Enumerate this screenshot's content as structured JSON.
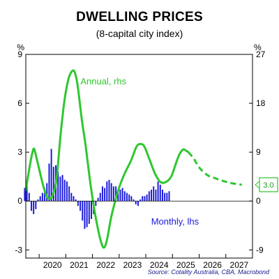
{
  "chart_data": {
    "type": "bar+line",
    "title": "DWELLING PRICES",
    "subtitle": "(8-capital city index)",
    "source": "Source: Cotality Australia, CBA, Macrobond",
    "left_axis": {
      "unit": "%",
      "ticks": [
        9,
        6,
        3,
        0,
        -3
      ],
      "ylim": [
        -3.5,
        9
      ]
    },
    "right_axis": {
      "unit": "%",
      "ticks": [
        27,
        18,
        9,
        0,
        -9
      ],
      "ylim": [
        -10.5,
        27
      ]
    },
    "x_axis": {
      "ticks": [
        "2020",
        "2021",
        "2022",
        "2023",
        "2024",
        "2025",
        "2026",
        "2027"
      ],
      "xlim": [
        2019.5,
        2028.0
      ]
    },
    "colors": {
      "monthly": "#1a1adb",
      "annual": "#2ec72e",
      "axis": "#000000",
      "source": "#1a1a8c"
    },
    "series": [
      {
        "name": "Monthly, lhs",
        "axis": "left",
        "kind": "bar",
        "start": "2019-06",
        "values": [
          0.8,
          1.0,
          0.5,
          -0.6,
          -0.8,
          -0.5,
          0.1,
          0.3,
          0.5,
          0.8,
          1.1,
          2.3,
          3.2,
          2.1,
          2.2,
          1.8,
          1.5,
          1.6,
          1.3,
          1.2,
          0.9,
          0.5,
          0.3,
          0.1,
          -0.3,
          -0.6,
          -1.2,
          -1.7,
          -1.6,
          -1.4,
          -1.1,
          -0.8,
          -0.3,
          0.2,
          0.5,
          0.9,
          0.8,
          1.2,
          1.3,
          1.1,
          0.9,
          0.9,
          0.7,
          0.7,
          0.8,
          0.6,
          0.5,
          0.4,
          0.3,
          0.1,
          -0.2,
          -0.3,
          0.1,
          0.3,
          0.3,
          0.4,
          0.6,
          0.7,
          0.9,
          0.7,
          1.2,
          1.0,
          0.7,
          0.5,
          0.5,
          0.6
        ]
      },
      {
        "name": "Annual, rhs",
        "axis": "right",
        "kind": "line",
        "points": [
          [
            2019.5,
            2.0
          ],
          [
            2019.65,
            6.5
          ],
          [
            2019.78,
            9.5
          ],
          [
            2019.85,
            9.0
          ],
          [
            2019.97,
            6.5
          ],
          [
            2020.2,
            2.0
          ],
          [
            2020.35,
            0.5
          ],
          [
            2020.5,
            1.0
          ],
          [
            2020.65,
            4.0
          ],
          [
            2020.8,
            12.0
          ],
          [
            2020.95,
            18.5
          ],
          [
            2021.1,
            22.5
          ],
          [
            2021.25,
            24.0
          ],
          [
            2021.35,
            23.5
          ],
          [
            2021.45,
            21.0
          ],
          [
            2021.6,
            15.0
          ],
          [
            2021.75,
            10.0
          ],
          [
            2021.9,
            4.0
          ],
          [
            2022.05,
            -1.0
          ],
          [
            2022.2,
            -5.0
          ],
          [
            2022.35,
            -8.0
          ],
          [
            2022.45,
            -8.5
          ],
          [
            2022.55,
            -7.0
          ],
          [
            2022.7,
            -3.0
          ],
          [
            2022.85,
            0.0
          ],
          [
            2023.0,
            2.5
          ],
          [
            2023.2,
            5.0
          ],
          [
            2023.45,
            7.5
          ],
          [
            2023.65,
            10.0
          ],
          [
            2023.8,
            10.5
          ],
          [
            2023.95,
            10.0
          ],
          [
            2024.15,
            7.5
          ],
          [
            2024.35,
            5.0
          ],
          [
            2024.55,
            3.5
          ],
          [
            2024.75,
            3.5
          ],
          [
            2024.95,
            4.5
          ],
          [
            2025.1,
            6.5
          ],
          [
            2025.25,
            8.5
          ],
          [
            2025.4,
            9.5
          ],
          [
            2025.5,
            9.3
          ],
          [
            2025.6,
            9.0
          ]
        ]
      },
      {
        "name": "Annual forecast",
        "axis": "right",
        "kind": "dashed-line",
        "points": [
          [
            2025.6,
            9.0
          ],
          [
            2025.8,
            7.8
          ],
          [
            2026.0,
            6.2
          ],
          [
            2026.3,
            4.8
          ],
          [
            2026.6,
            4.2
          ],
          [
            2026.9,
            3.7
          ],
          [
            2027.2,
            3.3
          ],
          [
            2027.6,
            3.0
          ]
        ]
      }
    ],
    "annotations": {
      "annual_label": "Annual, rhs",
      "monthly_label": "Monthly, lhs",
      "end_value": "3.0"
    }
  }
}
